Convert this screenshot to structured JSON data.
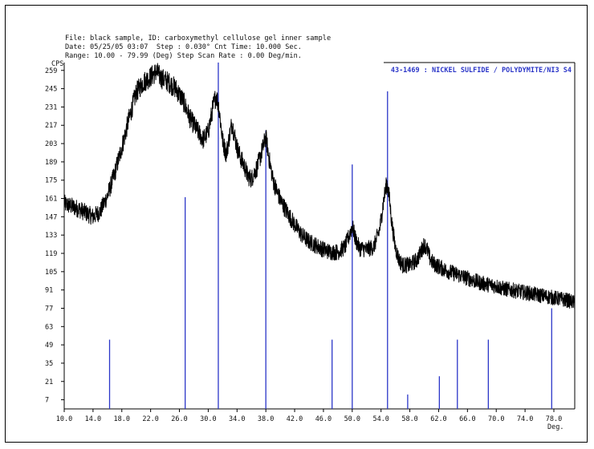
{
  "header": {
    "line1": "File: black sample, ID: carboxymethyl cellulose gel inner sample",
    "line2": "Date: 05/25/05 03:07  Step : 0.030° Cnt Time: 10.000 Sec.",
    "line3": "Range: 10.00 - 79.99 (Deg) Step Scan Rate : 0.00 Deg/min."
  },
  "chart_data": {
    "type": "line",
    "ylabel": "CPS",
    "xunit": "Deg.",
    "xlim": [
      10.0,
      80.9
    ],
    "ylim": [
      0,
      265
    ],
    "x_ticks": [
      "10.0",
      "14.0",
      "18.0",
      "22.0",
      "26.0",
      "30.0",
      "34.0",
      "38.0",
      "42.0",
      "46.0",
      "50.0",
      "54.0",
      "58.0",
      "62.0",
      "66.0",
      "70.0",
      "74.0",
      "78.0"
    ],
    "x_tick_values": [
      10,
      14,
      18,
      22,
      26,
      30,
      34,
      38,
      42,
      46,
      50,
      54,
      58,
      62,
      66,
      70,
      74,
      78
    ],
    "y_ticks": [
      "7",
      "21",
      "35",
      "49",
      "63",
      "77",
      "91",
      "105",
      "119",
      "133",
      "147",
      "161",
      "175",
      "189",
      "203",
      "217",
      "231",
      "245",
      "259"
    ],
    "y_tick_values": [
      7,
      21,
      35,
      49,
      63,
      77,
      91,
      105,
      119,
      133,
      147,
      161,
      175,
      189,
      203,
      217,
      231,
      245,
      259
    ],
    "phase_label": "43-1469 : NICKEL SULFIDE / POLYDYMITE/NI3 S4",
    "phase_color": "#2b36c8",
    "trace_color": "#000000",
    "reference_lines": [
      {
        "x": 16.3,
        "y": 53
      },
      {
        "x": 26.8,
        "y": 162
      },
      {
        "x": 31.4,
        "y": 265
      },
      {
        "x": 38.0,
        "y": 213
      },
      {
        "x": 47.2,
        "y": 53
      },
      {
        "x": 50.0,
        "y": 187
      },
      {
        "x": 54.9,
        "y": 243
      },
      {
        "x": 57.7,
        "y": 11
      },
      {
        "x": 62.1,
        "y": 25
      },
      {
        "x": 64.6,
        "y": 53
      },
      {
        "x": 68.9,
        "y": 53
      },
      {
        "x": 77.7,
        "y": 77
      }
    ],
    "trace": {
      "x": [
        10.0,
        11.0,
        12.0,
        13.0,
        14.0,
        15.0,
        15.5,
        16.0,
        17.0,
        18.0,
        19.0,
        20.0,
        21.0,
        22.0,
        22.8,
        23.5,
        24.5,
        25.5,
        26.5,
        27.5,
        28.5,
        29.3,
        30.0,
        30.7,
        31.1,
        31.5,
        32.0,
        32.5,
        33.0,
        33.3,
        33.6,
        34.0,
        34.5,
        35.0,
        35.5,
        36.0,
        36.8,
        37.5,
        38.0,
        38.5,
        39.0,
        39.5,
        40.0,
        41.0,
        42.0,
        43.0,
        44.0,
        45.0,
        46.0,
        47.0,
        48.0,
        49.0,
        49.6,
        50.0,
        50.5,
        51.0,
        52.0,
        53.0,
        53.8,
        54.4,
        54.8,
        55.1,
        55.5,
        56.0,
        56.5,
        57.0,
        58.0,
        59.0,
        59.5,
        60.0,
        60.4,
        60.8,
        61.3,
        62.0,
        63.0,
        64.0,
        65.0,
        66.0,
        67.0,
        68.0,
        69.0,
        70.0,
        71.0,
        72.0,
        73.0,
        74.0,
        75.0,
        76.0,
        77.0,
        78.0,
        79.0,
        80.0,
        80.9
      ],
      "y": [
        157,
        155,
        153,
        150,
        147,
        151,
        157,
        163,
        180,
        200,
        222,
        242,
        250,
        254,
        258,
        253,
        250,
        245,
        236,
        222,
        213,
        206,
        212,
        232,
        240,
        230,
        205,
        195,
        210,
        219,
        211,
        200,
        192,
        186,
        178,
        176,
        185,
        198,
        208,
        190,
        175,
        167,
        160,
        150,
        141,
        133,
        128,
        125,
        122,
        120,
        120,
        124,
        133,
        140,
        129,
        123,
        122,
        124,
        137,
        161,
        173,
        164,
        142,
        123,
        114,
        110,
        110,
        114,
        120,
        126,
        122,
        115,
        111,
        109,
        106,
        104,
        102,
        100,
        98,
        96,
        95,
        94,
        92,
        91,
        90,
        89,
        88,
        87,
        86,
        85,
        84,
        83,
        81
      ]
    }
  }
}
